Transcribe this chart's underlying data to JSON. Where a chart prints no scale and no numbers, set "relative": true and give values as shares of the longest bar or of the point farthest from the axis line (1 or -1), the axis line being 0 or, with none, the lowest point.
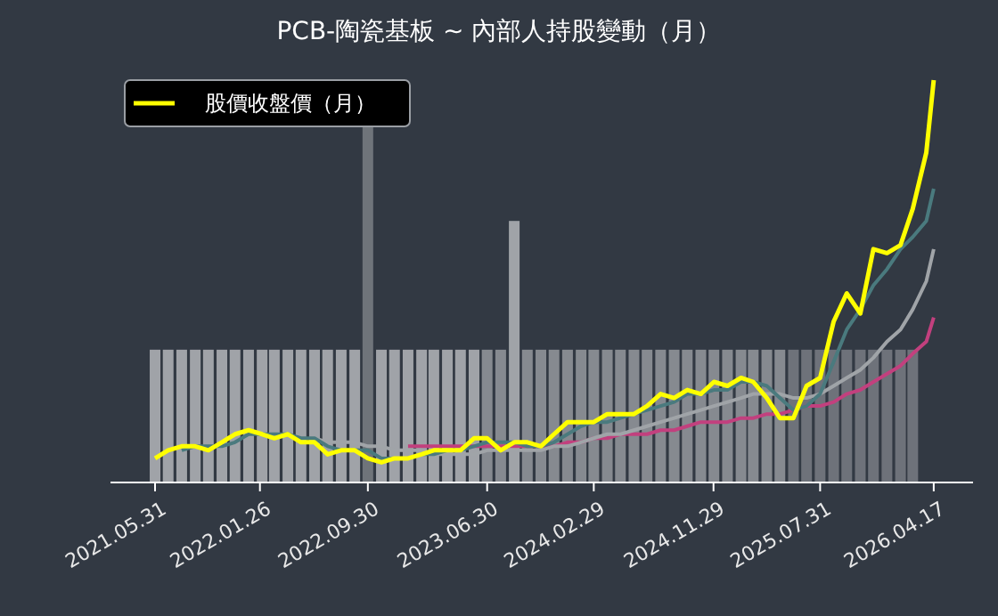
{
  "chart_data": {
    "type": "line",
    "title": "PCB-陶瓷基板 ~ 內部人持股變動（月）",
    "relative": true,
    "legend": "top left",
    "x": [
      "2021-05-31",
      "2021-06-30",
      "2021-07-31",
      "2021-08-31",
      "2021-09-30",
      "2021-10-31",
      "2021-11-30",
      "2021-12-31",
      "2022-01-31",
      "2022-02-28",
      "2022-03-31",
      "2022-04-30",
      "2022-05-31",
      "2022-06-30",
      "2022-07-31",
      "2022-08-31",
      "2022-09-30",
      "2022-10-31",
      "2022-11-30",
      "2022-12-31",
      "2023-01-31",
      "2023-02-28",
      "2023-03-31",
      "2023-04-30",
      "2023-05-31",
      "2023-06-30",
      "2023-07-31",
      "2023-08-31",
      "2023-09-30",
      "2023-10-31",
      "2023-11-30",
      "2023-12-31",
      "2024-01-31",
      "2024-02-29",
      "2024-03-31",
      "2024-04-30",
      "2024-05-31",
      "2024-06-30",
      "2024-07-31",
      "2024-08-31",
      "2024-09-30",
      "2024-10-31",
      "2024-11-30",
      "2024-12-31",
      "2025-01-31",
      "2025-02-28",
      "2025-03-31",
      "2025-04-30",
      "2025-05-31",
      "2025-06-30",
      "2025-07-31",
      "2025-08-31",
      "2025-09-30",
      "2025-10-31",
      "2025-11-30",
      "2025-12-31",
      "2026-01-31",
      "2026-02-28",
      "2026-03-31",
      "2026-04-17"
    ],
    "xlim": [
      "2021-02-18",
      "2026-07-16"
    ],
    "xticks": [
      {
        "value": "2021-05-31",
        "label": "2021.05.31"
      },
      {
        "value": "2022-01-26",
        "label": "2022.01.26"
      },
      {
        "value": "2022-09-30",
        "label": "2022.09.30"
      },
      {
        "value": "2023-06-30",
        "label": "2023.06.30"
      },
      {
        "value": "2024-02-29",
        "label": "2024.02.29"
      },
      {
        "value": "2024-11-29",
        "label": "2024.11.29"
      },
      {
        "value": "2025-07-31",
        "label": "2025.07.31"
      },
      {
        "value": "2026-04-17",
        "label": "2026.04.17"
      }
    ],
    "series": [
      {
        "type": "bar",
        "x": [
          "2021-05-31",
          "2021-06-30",
          "2021-07-31",
          "2021-08-31",
          "2021-09-30",
          "2021-10-31",
          "2021-11-30",
          "2021-12-31",
          "2022-01-31",
          "2022-02-28",
          "2022-03-31",
          "2022-04-30",
          "2022-05-31",
          "2022-06-30",
          "2022-07-31",
          "2022-08-31",
          "2022-09-30",
          "2022-10-31",
          "2022-11-30",
          "2022-12-31",
          "2023-01-31",
          "2023-02-28",
          "2023-03-31",
          "2023-04-30",
          "2023-05-31",
          "2023-06-30",
          "2023-07-31",
          "2023-08-31",
          "2023-09-30",
          "2023-10-31",
          "2023-11-30",
          "2023-12-31",
          "2024-01-31",
          "2024-02-29",
          "2024-03-31",
          "2024-04-30",
          "2024-05-31",
          "2024-06-30",
          "2024-07-31",
          "2024-08-31",
          "2024-09-30",
          "2024-10-31",
          "2024-11-30",
          "2024-12-31",
          "2025-01-31",
          "2025-02-28",
          "2025-03-31",
          "2025-04-30",
          "2025-05-31",
          "2025-06-30",
          "2025-07-31",
          "2025-08-31",
          "2025-09-30",
          "2025-10-31",
          "2025-11-30",
          "2025-12-31",
          "2026-01-31",
          "2026-02-28"
        ],
        "colors": [
          "#a0a3a8",
          "#a0a3a8",
          "#a0a3a8",
          "#a0a3a8",
          "#a0a3a8",
          "#a0a3a8",
          "#a0a3a8",
          "#a0a3a8",
          "#a0a3a8",
          "#a0a3a8",
          "#a0a3a8",
          "#a0a3a8",
          "#a0a3a8",
          "#a0a3a8",
          "#a0a3a8",
          "#a0a3a8",
          "#6f747a",
          "#a0a3a8",
          "#a0a3a8",
          "#a0a3a8",
          "#a0a3a8",
          "#a0a3a8",
          "#a0a3a8",
          "#a0a3a8",
          "#a0a3a8",
          "#868a90",
          "#868a90",
          "#a0a3a8",
          "#868a90",
          "#868a90",
          "#868a90",
          "#868a90",
          "#868a90",
          "#868a90",
          "#868a90",
          "#868a90",
          "#868a90",
          "#868a90",
          "#868a90",
          "#868a90",
          "#868a90",
          "#868a90",
          "#868a90",
          "#868a90",
          "#868a90",
          "#868a90",
          "#868a90",
          "#868a90",
          "#6e727a",
          "#6e727a",
          "#6e727a",
          "#6e727a",
          "#6e727a",
          "#6e727a",
          "#6e727a",
          "#6e727a",
          "#6e727a",
          "#6e727a"
        ],
        "values": [
          0.33,
          0.33,
          0.33,
          0.33,
          0.33,
          0.33,
          0.33,
          0.33,
          0.33,
          0.33,
          0.33,
          0.33,
          0.33,
          0.33,
          0.33,
          0.33,
          0.89,
          0.33,
          0.33,
          0.33,
          0.33,
          0.33,
          0.33,
          0.33,
          0.33,
          0.33,
          0.33,
          0.65,
          0.33,
          0.33,
          0.33,
          0.33,
          0.33,
          0.33,
          0.33,
          0.33,
          0.33,
          0.33,
          0.33,
          0.33,
          0.33,
          0.33,
          0.33,
          0.33,
          0.33,
          0.33,
          0.33,
          0.33,
          0.33,
          0.33,
          0.33,
          0.33,
          0.33,
          0.33,
          0.33,
          0.33,
          0.33,
          0.33
        ]
      },
      {
        "color": "#c2407e",
        "values": [
          null,
          null,
          null,
          null,
          null,
          null,
          null,
          null,
          null,
          null,
          null,
          null,
          null,
          null,
          null,
          null,
          null,
          null,
          null,
          0.09,
          0.09,
          0.09,
          0.09,
          0.09,
          0.09,
          0.09,
          0.09,
          0.09,
          0.09,
          0.09,
          0.09,
          0.1,
          0.1,
          0.11,
          0.11,
          0.12,
          0.12,
          0.12,
          0.13,
          0.13,
          0.14,
          0.15,
          0.15,
          0.15,
          0.16,
          0.16,
          0.17,
          0.17,
          0.18,
          0.19,
          0.19,
          0.2,
          0.22,
          0.23,
          0.25,
          0.27,
          0.29,
          0.32,
          0.35,
          0.41
        ]
      },
      {
        "color": "#a0a4a8",
        "values": [
          null,
          null,
          null,
          null,
          null,
          null,
          null,
          null,
          null,
          null,
          null,
          null,
          0.11,
          0.1,
          0.1,
          0.1,
          0.09,
          0.09,
          0.08,
          0.08,
          0.08,
          0.07,
          0.07,
          0.07,
          0.07,
          0.08,
          0.08,
          0.08,
          0.08,
          0.08,
          0.09,
          0.09,
          0.1,
          0.11,
          0.12,
          0.12,
          0.13,
          0.14,
          0.15,
          0.16,
          0.17,
          0.18,
          0.19,
          0.2,
          0.21,
          0.22,
          0.22,
          0.22,
          0.21,
          0.21,
          0.22,
          0.24,
          0.26,
          0.28,
          0.31,
          0.35,
          0.38,
          0.43,
          0.5,
          0.58
        ]
      },
      {
        "color": "#4a7a7e",
        "values": [
          null,
          null,
          0.08,
          0.09,
          0.09,
          0.09,
          0.1,
          0.12,
          0.12,
          0.12,
          0.12,
          0.11,
          0.11,
          0.09,
          0.08,
          0.08,
          0.08,
          0.06,
          0.06,
          0.06,
          0.07,
          0.07,
          0.08,
          0.08,
          0.09,
          0.1,
          0.1,
          0.1,
          0.09,
          0.09,
          0.1,
          0.12,
          0.14,
          0.15,
          0.15,
          0.16,
          0.17,
          0.18,
          0.19,
          0.2,
          0.22,
          0.22,
          0.23,
          0.23,
          0.25,
          0.25,
          0.24,
          0.21,
          0.18,
          0.19,
          0.22,
          0.3,
          0.38,
          0.43,
          0.49,
          0.53,
          0.58,
          0.61,
          0.65,
          0.73
        ]
      },
      {
        "name": "股價收盤價（月）",
        "color": "#ffff00",
        "values": [
          0.06,
          0.08,
          0.09,
          0.09,
          0.08,
          0.1,
          0.12,
          0.13,
          0.12,
          0.11,
          0.12,
          0.1,
          0.1,
          0.07,
          0.08,
          0.08,
          0.06,
          0.05,
          0.06,
          0.06,
          0.07,
          0.08,
          0.08,
          0.08,
          0.11,
          0.11,
          0.08,
          0.1,
          0.1,
          0.09,
          0.12,
          0.15,
          0.15,
          0.15,
          0.17,
          0.17,
          0.17,
          0.19,
          0.22,
          0.21,
          0.23,
          0.22,
          0.25,
          0.24,
          0.26,
          0.25,
          0.21,
          0.16,
          0.16,
          0.24,
          0.26,
          0.4,
          0.47,
          0.42,
          0.58,
          0.57,
          0.59,
          0.68,
          0.82,
          1
        ]
      }
    ]
  }
}
